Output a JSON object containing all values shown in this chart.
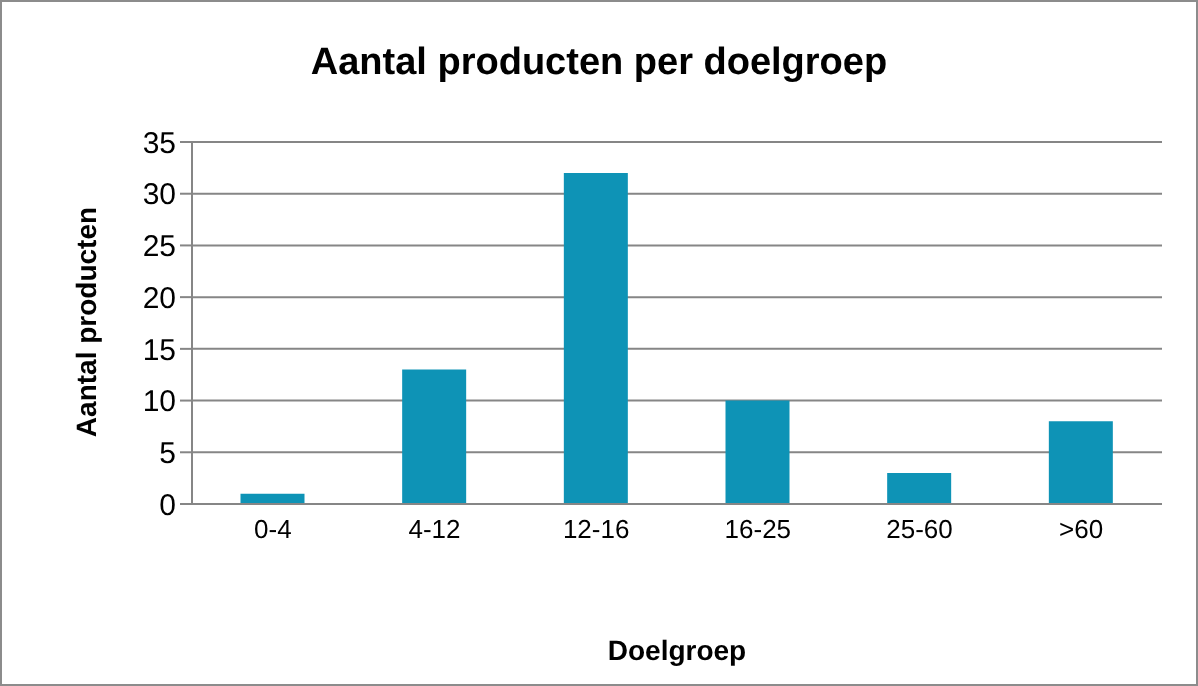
{
  "chart_data": {
    "type": "bar",
    "title": "Aantal producten per doelgroep",
    "xlabel": "Doelgroep",
    "ylabel": "Aantal producten",
    "categories": [
      "0-4",
      "4-12",
      "12-16",
      "16-25",
      "25-60",
      ">60"
    ],
    "values": [
      1,
      13,
      32,
      10,
      3,
      8
    ],
    "color": "#0e93b6",
    "ylim": [
      0,
      35
    ],
    "yticks": [
      0,
      5,
      10,
      15,
      20,
      25,
      30,
      35
    ],
    "grid": "y"
  }
}
